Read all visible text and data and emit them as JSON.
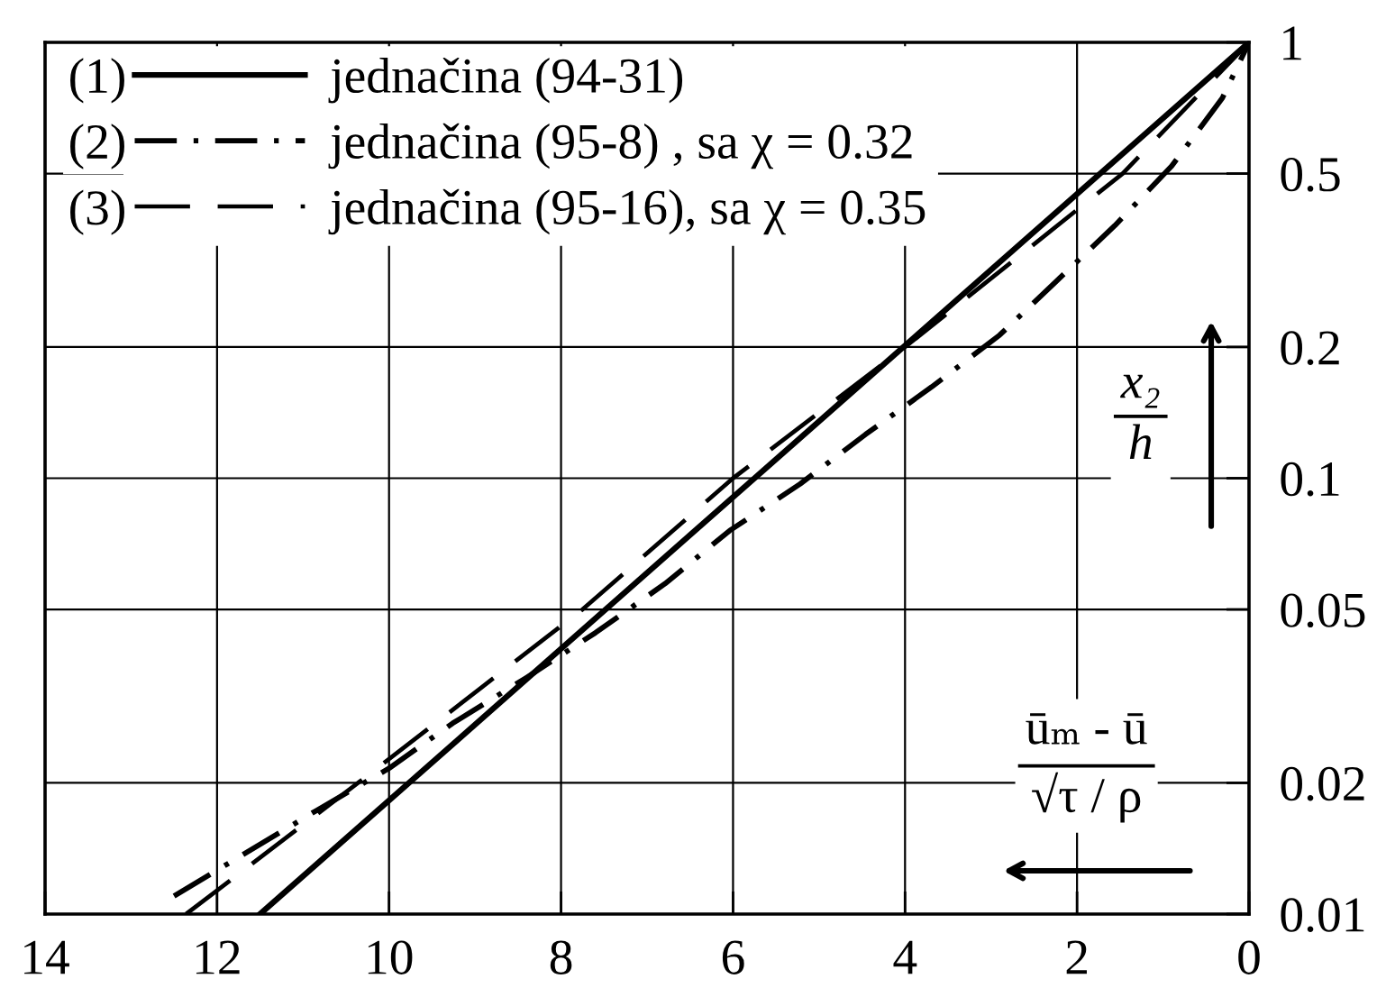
{
  "chart_data": {
    "type": "line",
    "xlabel": "ūₘ - ū\n√τ / ρ",
    "ylabel": "x₂\nh",
    "annotations": [
      "(1)",
      "(2)",
      "(3)"
    ],
    "series": [
      {
        "name": "jednačina (94-31)",
        "color": "#000000",
        "line_style": "solid",
        "x": [
          11.5,
          0
        ],
        "values": [
          0.01,
          1
        ]
      },
      {
        "name": "jednačina (95-8) , sa χ = 0.32",
        "color": "#000000",
        "line_style": "dashdot",
        "x": [
          12.5,
          10.84,
          10.0,
          9.26,
          8.41,
          7.6,
          6.79,
          6.04,
          5.22,
          4.46,
          3.69,
          2.9,
          2.25,
          1.56,
          0.9,
          0.31,
          0
        ],
        "values": [
          0.011,
          0.0173,
          0.0216,
          0.0274,
          0.0348,
          0.0442,
          0.0573,
          0.0758,
          0.097,
          0.126,
          0.162,
          0.213,
          0.282,
          0.38,
          0.52,
          0.745,
          1
        ]
      },
      {
        "name": "jednačina (95-16), sa χ = 0.35",
        "color": "#000000",
        "line_style": "dashed",
        "x": [
          12.36,
          10.36,
          7.75,
          6.0,
          4.0,
          1.47,
          0
        ],
        "values": [
          0.01,
          0.02,
          0.05,
          0.1,
          0.2,
          0.5,
          1
        ]
      }
    ],
    "xlim": [
      14,
      0
    ],
    "ylim": [
      0.01,
      1
    ],
    "xticks": [
      14,
      12,
      10,
      8,
      6,
      4,
      2,
      0
    ],
    "yticks": [
      0.01,
      0.02,
      0.05,
      0.1,
      0.2,
      0.5,
      1
    ],
    "log": "y",
    "grid": true,
    "legend": "top left"
  }
}
